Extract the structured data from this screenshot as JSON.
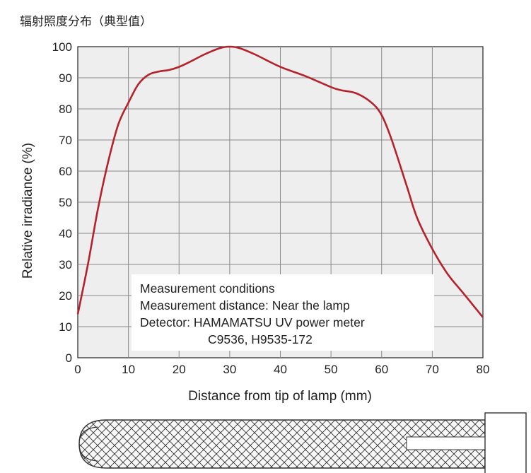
{
  "chart_data": {
    "type": "line",
    "title": "辐射照度分布（典型值）",
    "xlabel": "Distance from tip of lamp (mm)",
    "ylabel": "Relative irradiance (%)",
    "xlim": [
      0,
      80
    ],
    "ylim": [
      0,
      100
    ],
    "x_ticks": [
      0,
      10,
      20,
      30,
      40,
      50,
      60,
      70,
      80
    ],
    "y_ticks": [
      0,
      10,
      20,
      30,
      40,
      50,
      60,
      70,
      80,
      90,
      100
    ],
    "grid": true,
    "series": [
      {
        "color": "#b5222b",
        "x": [
          0,
          2,
          4,
          6,
          8,
          10,
          12,
          14,
          16,
          18,
          20,
          22,
          25,
          28,
          30,
          32,
          35,
          40,
          45,
          50,
          52,
          55,
          58,
          60,
          62,
          65,
          67,
          70,
          73,
          76,
          80
        ],
        "y": [
          14,
          30,
          48,
          63,
          75,
          82,
          88,
          91,
          92,
          92.5,
          93.5,
          95,
          97.5,
          99.5,
          100,
          99.5,
          97.5,
          93.5,
          90.5,
          87,
          86,
          85,
          82,
          78,
          70,
          55,
          45,
          35,
          27,
          21,
          13
        ]
      }
    ],
    "annotations": [
      "Measurement conditions",
      "Measurement distance: Near the lamp",
      "Detector: HAMAMATSU UV power meter",
      "C9536, H9535-172"
    ]
  },
  "colors": {
    "plot_background": "#eeeeee",
    "grid": "#8a8a8a",
    "line": "#b5222b"
  },
  "illustration": {
    "icon": "lamp-diagram-icon"
  }
}
